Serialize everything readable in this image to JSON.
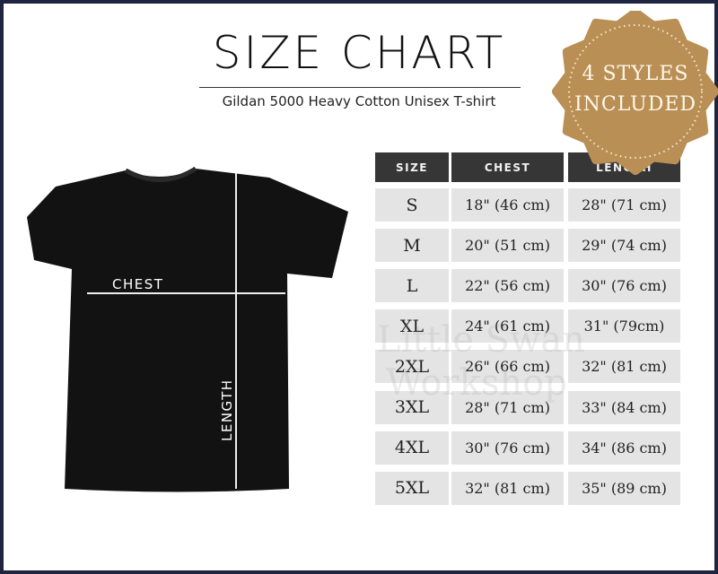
{
  "header": {
    "title": "SIZE CHART",
    "subtitle": "Gildan 5000 Heavy Cotton Unisex T-shirt"
  },
  "badge": {
    "line1": "4 STYLES",
    "line2": "INCLUDED",
    "color": "#b98f55"
  },
  "diagram": {
    "chest_label": "CHEST",
    "length_label": "LENGTH",
    "shirt_color": "#111111"
  },
  "table": {
    "headers": [
      "SIZE",
      "CHEST",
      "LENGTH"
    ],
    "rows": [
      [
        "S",
        "18\" (46 cm)",
        "28\" (71 cm)"
      ],
      [
        "M",
        "20\" (51 cm)",
        "29\" (74 cm)"
      ],
      [
        "L",
        "22\" (56 cm)",
        "30\" (76 cm)"
      ],
      [
        "XL",
        "24\" (61 cm)",
        "31\" (79cm)"
      ],
      [
        "2XL",
        "26\" (66 cm)",
        "32\" (81 cm)"
      ],
      [
        "3XL",
        "28\" (71 cm)",
        "33\" (84 cm)"
      ],
      [
        "4XL",
        "30\" (76 cm)",
        "34\" (86 cm)"
      ],
      [
        "5XL",
        "32\" (81 cm)",
        "35\" (89 cm)"
      ]
    ]
  },
  "watermark": {
    "line1": "Little Swan",
    "line2": "Workshop"
  }
}
